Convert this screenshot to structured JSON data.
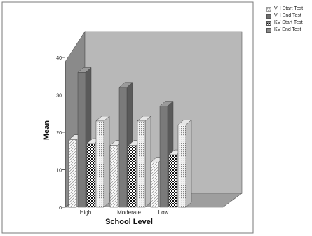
{
  "chart_data": {
    "type": "bar",
    "categories": [
      "High",
      "Moderate",
      "Low"
    ],
    "series": [
      {
        "name": "VH Start Test",
        "values": [
          18,
          16.5,
          12
        ]
      },
      {
        "name": "VH End Test",
        "values": [
          36,
          32,
          27
        ]
      },
      {
        "name": "KV Start Test",
        "values": [
          17,
          16.5,
          14
        ]
      },
      {
        "name": "KV End Test",
        "values": [
          23,
          23,
          22
        ]
      }
    ],
    "title": "",
    "xlabel": "School Level",
    "ylabel": "Mean",
    "ylim": [
      0,
      40
    ],
    "yticks": [
      0,
      10,
      20,
      30,
      40
    ],
    "legend_position": "top-right",
    "grid": false,
    "style": "3d-bar",
    "colors": {
      "back_wall": "#b8b8b8",
      "floor": "#9e9e9e",
      "left_wall": "#8a8a8a",
      "vh_end": "#7a7a7a",
      "plot_background": "#efefef",
      "label_box": "#ffffff"
    },
    "series_patterns": [
      "diagonal-hatch",
      "solid-dark",
      "checker",
      "dotted-grid"
    ]
  }
}
